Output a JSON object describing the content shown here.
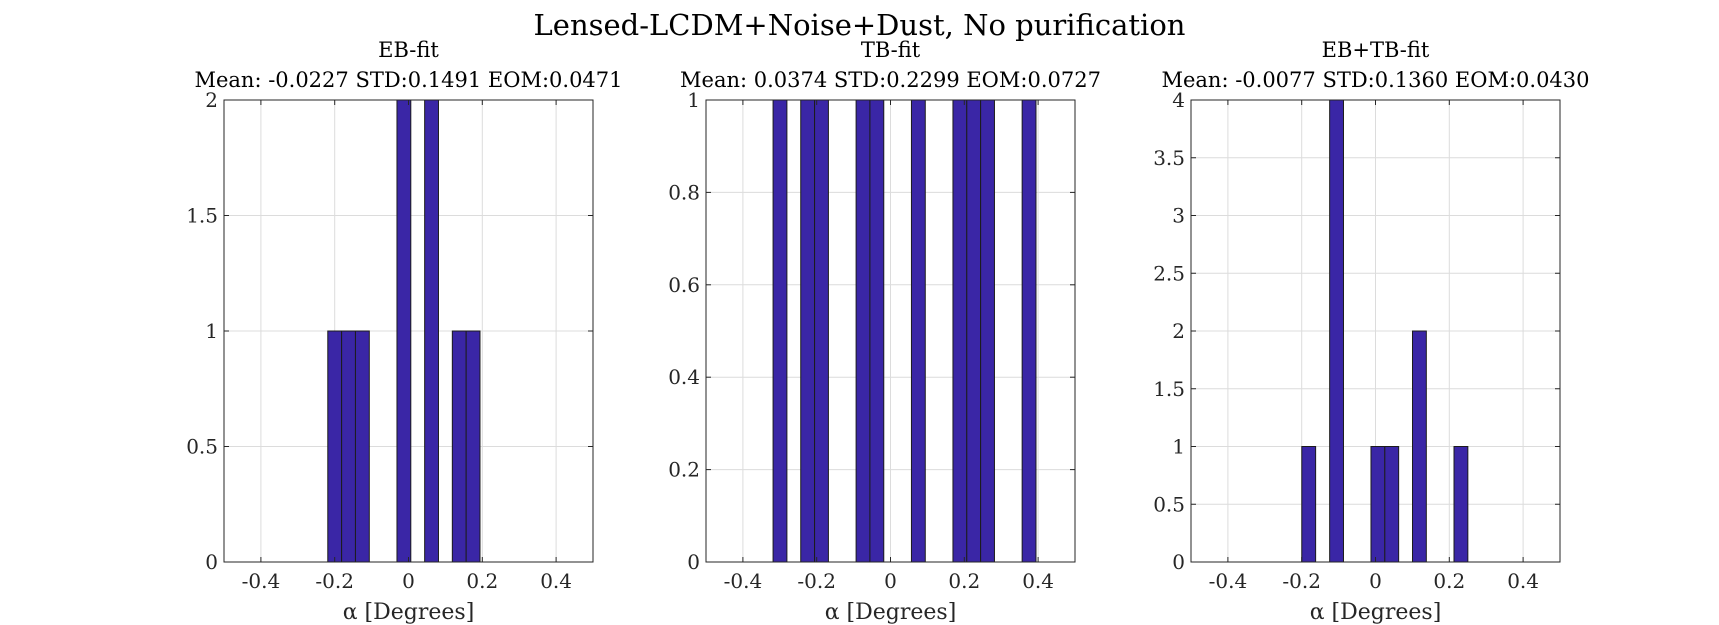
{
  "figure": {
    "suptitle": "Lensed-LCDM+Noise+Dust, No purification"
  },
  "colors": {
    "bar_fill": "#3a26a6",
    "bar_edge": "#1c1c1c",
    "grid": "#dcdcdc",
    "axis": "#262626"
  },
  "chart_data": [
    {
      "type": "bar",
      "title": "EB-fit",
      "subtitle": "Mean: -0.0227 STD:0.1491 EOM:0.0471",
      "xlabel": "α [Degrees]",
      "ylabel": "",
      "xlim": [
        -0.5,
        0.5
      ],
      "ylim": [
        0,
        2
      ],
      "xticks": [
        -0.4,
        -0.2,
        0,
        0.2,
        0.4
      ],
      "xtick_labels": [
        "-0.4",
        "-0.2",
        "0",
        "0.2",
        "0.4"
      ],
      "yticks": [
        0,
        0.5,
        1,
        1.5,
        2
      ],
      "ytick_labels": [
        "0",
        "0.5",
        "1",
        "1.5",
        "2"
      ],
      "grid": true,
      "bin_width": 0.0375,
      "bins": [
        {
          "x": -0.2,
          "value": 1
        },
        {
          "x": -0.1625,
          "value": 1
        },
        {
          "x": -0.125,
          "value": 1
        },
        {
          "x": -0.0125,
          "value": 2
        },
        {
          "x": 0.0625,
          "value": 2
        },
        {
          "x": 0.1375,
          "value": 1
        },
        {
          "x": 0.175,
          "value": 1
        }
      ]
    },
    {
      "type": "bar",
      "title": "TB-fit",
      "subtitle": "Mean: 0.0374 STD:0.2299 EOM:0.0727",
      "xlabel": "α [Degrees]",
      "ylabel": "",
      "xlim": [
        -0.5,
        0.5
      ],
      "ylim": [
        0,
        1
      ],
      "xticks": [
        -0.4,
        -0.2,
        0,
        0.2,
        0.4
      ],
      "xtick_labels": [
        "-0.4",
        "-0.2",
        "0",
        "0.2",
        "0.4"
      ],
      "yticks": [
        0,
        0.2,
        0.4,
        0.6,
        0.8,
        1
      ],
      "ytick_labels": [
        "0",
        "0.2",
        "0.4",
        "0.6",
        "0.8",
        "1"
      ],
      "grid": true,
      "bin_width": 0.0375,
      "bins": [
        {
          "x": -0.2995,
          "value": 1
        },
        {
          "x": -0.2245,
          "value": 1
        },
        {
          "x": -0.187,
          "value": 1
        },
        {
          "x": -0.0745,
          "value": 1
        },
        {
          "x": -0.037,
          "value": 1
        },
        {
          "x": 0.0755,
          "value": 1
        },
        {
          "x": 0.188,
          "value": 1
        },
        {
          "x": 0.2255,
          "value": 1
        },
        {
          "x": 0.263,
          "value": 1
        },
        {
          "x": 0.3755,
          "value": 1
        }
      ]
    },
    {
      "type": "bar",
      "title": "EB+TB-fit",
      "subtitle": "Mean: -0.0077 STD:0.1360 EOM:0.0430",
      "xlabel": "α [Degrees]",
      "ylabel": "",
      "xlim": [
        -0.5,
        0.5
      ],
      "ylim": [
        0,
        4
      ],
      "xticks": [
        -0.4,
        -0.2,
        0,
        0.2,
        0.4
      ],
      "xtick_labels": [
        "-0.4",
        "-0.2",
        "0",
        "0.2",
        "0.4"
      ],
      "yticks": [
        0,
        0.5,
        1,
        1.5,
        2,
        2.5,
        3,
        3.5,
        4
      ],
      "ytick_labels": [
        "0",
        "0.5",
        "1",
        "1.5",
        "2",
        "2.5",
        "3",
        "3.5",
        "4"
      ],
      "grid": true,
      "bin_width": 0.0375,
      "bins": [
        {
          "x": -0.181,
          "value": 1
        },
        {
          "x": -0.1055,
          "value": 4
        },
        {
          "x": 0.0065,
          "value": 1
        },
        {
          "x": 0.044,
          "value": 1
        },
        {
          "x": 0.119,
          "value": 2
        },
        {
          "x": 0.2315,
          "value": 1
        }
      ]
    }
  ]
}
